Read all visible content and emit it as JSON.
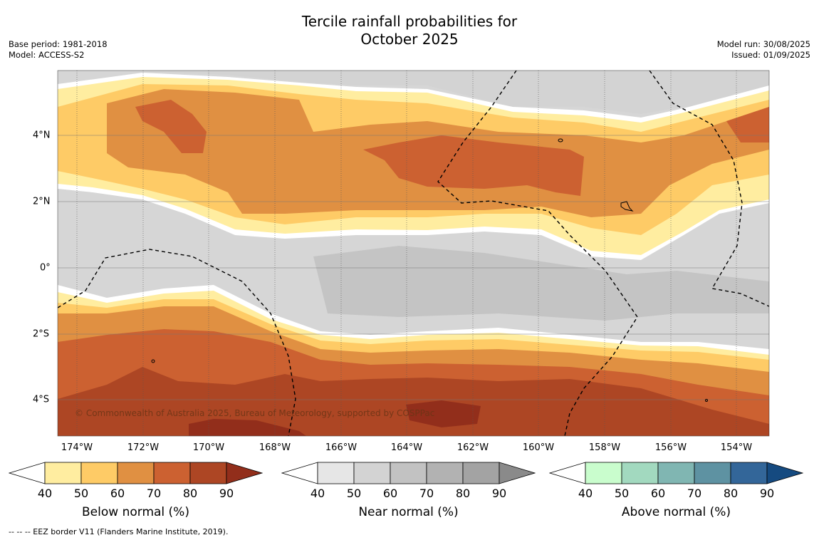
{
  "title_line1": "Tercile rainfall probabilities for",
  "title_line2": "October 2025",
  "meta_left": {
    "base_period": "Base period: 1981-2018",
    "model": "Model: ACCESS-S2"
  },
  "meta_right": {
    "model_run": "Model run: 30/08/2025",
    "issued": "Issued: 01/09/2025"
  },
  "copyright": "© Commonwealth of Australia 2025, Bureau of Meteorology, supported by COSPPac",
  "lon_labels": [
    "174°W",
    "172°W",
    "170°W",
    "168°W",
    "166°W",
    "164°W",
    "162°W",
    "160°W",
    "158°W",
    "156°W",
    "154°W"
  ],
  "lat_labels": [
    "4°N",
    "2°N",
    "0°",
    "2°S",
    "4°S"
  ],
  "colorbars": [
    {
      "title": "Below normal (%)",
      "ticks": [
        "40",
        "50",
        "60",
        "70",
        "80",
        "90"
      ],
      "colors": [
        "#ffeda0",
        "#fecb66",
        "#e09042",
        "#cc6131",
        "#ad4624",
        "#922e1b"
      ]
    },
    {
      "title": "Near normal (%)",
      "ticks": [
        "40",
        "50",
        "60",
        "70",
        "80",
        "90"
      ],
      "colors": [
        "#e6e6e6",
        "#d3d3d3",
        "#c2c2c2",
        "#b2b2b2",
        "#a3a3a3",
        "#8a8a8a"
      ]
    },
    {
      "title": "Above normal (%)",
      "ticks": [
        "40",
        "50",
        "60",
        "70",
        "80",
        "90"
      ],
      "colors": [
        "#c9fdcd",
        "#a2d9bf",
        "#80b6b2",
        "#5e92a2",
        "#336699",
        "#154a80"
      ]
    }
  ],
  "footnote": "-- -- -- EEZ border V11 (Flanders Marine Institute, 2019)."
}
